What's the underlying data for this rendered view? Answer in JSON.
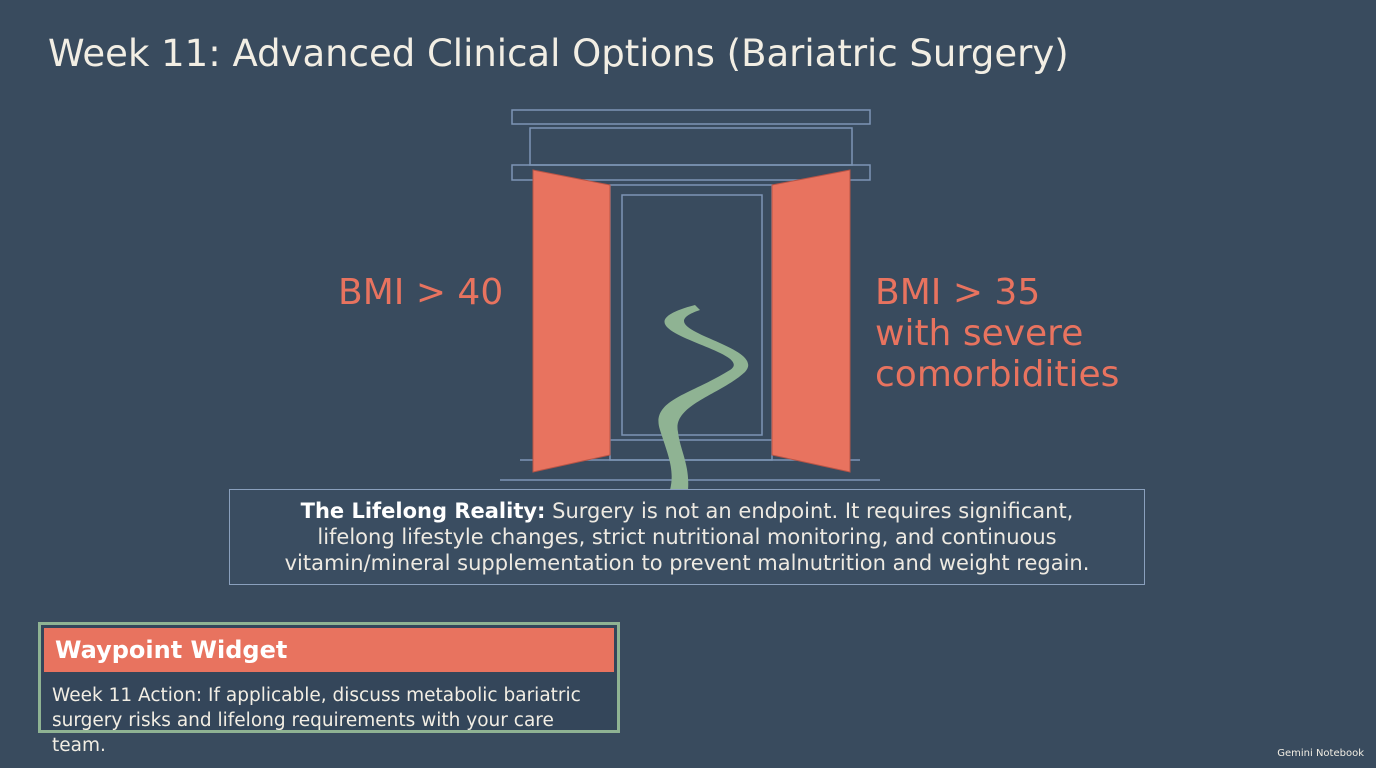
{
  "title": "Week 11: Advanced Clinical Options (Bariatric Surgery)",
  "gate": {
    "left_label": "BMI > 40",
    "right_label_lines": [
      "BMI > 35",
      "with severe",
      "comorbidities"
    ]
  },
  "callout": {
    "lead": "The Lifelong Reality:",
    "text": "Surgery is not an endpoint. It requires significant, lifelong lifestyle changes, strict nutritional monitoring, and continuous vitamin/mineral supplementation to prevent malnutrition and weight regain."
  },
  "widget": {
    "title": "Waypoint Widget",
    "body": "Week 11 Action: If applicable, discuss metabolic bariatric surgery risks and lifelong requirements with your care team."
  },
  "footer": {
    "brand": "Gemini Notebook"
  }
}
